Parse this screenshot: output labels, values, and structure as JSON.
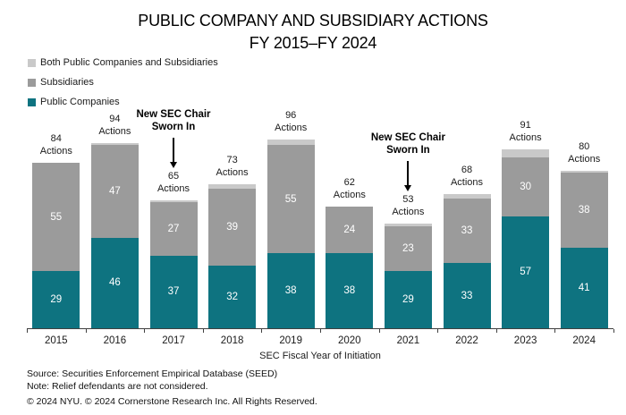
{
  "title": {
    "line1": "PUBLIC COMPANY AND SUBSIDIARY ACTIONS",
    "line2": "FY 2015–FY 2024"
  },
  "legend": [
    {
      "label": "Both Public Companies and Subsidiaries",
      "color": "#c9c9c9"
    },
    {
      "label": "Subsidiaries",
      "color": "#9b9b9b"
    },
    {
      "label": "Public Companies",
      "color": "#0e7380"
    }
  ],
  "chart_data": {
    "type": "bar",
    "stacked": true,
    "title": "PUBLIC COMPANY AND SUBSIDIARY ACTIONS FY 2015–FY 2024",
    "categories": [
      "2015",
      "2016",
      "2017",
      "2018",
      "2019",
      "2020",
      "2021",
      "2022",
      "2023",
      "2024"
    ],
    "series": [
      {
        "name": "Public Companies",
        "color": "#0e7380",
        "labeled": true,
        "values": [
          29,
          46,
          37,
          32,
          38,
          38,
          29,
          33,
          57,
          41
        ]
      },
      {
        "name": "Subsidiaries",
        "color": "#9b9b9b",
        "labeled": true,
        "values": [
          55,
          47,
          27,
          39,
          55,
          24,
          23,
          33,
          30,
          38
        ]
      },
      {
        "name": "Both Public Companies and Subsidiaries",
        "color": "#c9c9c9",
        "labeled": false,
        "values": [
          0,
          1,
          1,
          2,
          3,
          0,
          1,
          2,
          4,
          1
        ]
      }
    ],
    "totals": [
      84,
      94,
      65,
      73,
      96,
      62,
      53,
      68,
      91,
      80
    ],
    "total_label_suffix": "Actions",
    "xlabel": "SEC Fiscal Year of Initiation",
    "ylim": [
      0,
      100
    ],
    "grid": false,
    "legend_position": "top-left",
    "annotations": [
      {
        "line1": "New SEC Chair",
        "line2": "Sworn In",
        "category": "2017"
      },
      {
        "line1": "New SEC Chair",
        "line2": "Sworn In",
        "category": "2021"
      }
    ]
  },
  "footer": {
    "source": "Source: Securities Enforcement Empirical Database (SEED)",
    "note": "Note: Relief defendants are not considered.",
    "copyright": "© 2024 NYU. © 2024 Cornerstone Research Inc. All Rights Reserved."
  }
}
